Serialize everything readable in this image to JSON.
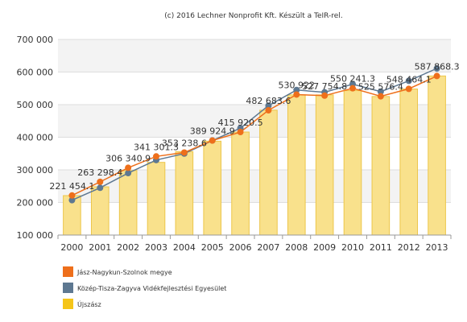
{
  "chart_data": {
    "type": "bar",
    "credit": "(c) 2016 Lechner Nonprofit Kft. Készült a TeIR-rel.",
    "title": "",
    "xlabel": "",
    "ylabel": "",
    "ylim": [
      100000,
      700000
    ],
    "yticks": [
      100000,
      200000,
      300000,
      400000,
      500000,
      600000,
      700000
    ],
    "ytick_labels": [
      "100 000",
      "200 000",
      "300 000",
      "400 000",
      "500 000",
      "600 000",
      "700 000"
    ],
    "grid": true,
    "legend_position": "bottom-left",
    "categories": [
      "2000",
      "2001",
      "2002",
      "2003",
      "2004",
      "2005",
      "2006",
      "2007",
      "2008",
      "2009",
      "2010",
      "2011",
      "2012",
      "2013"
    ],
    "series": [
      {
        "name": "Jász-Nagykun-Szolnok megye",
        "kind": "line",
        "color": "#ee6f1b",
        "values": [
          221454.1,
          263298.4,
          306340.9,
          341301.3,
          353238.6,
          389924.9,
          415920.5,
          482683.6,
          530922.0,
          527754.8,
          550241.3,
          525576.4,
          548464.1,
          587868.3
        ]
      },
      {
        "name": "Közép-Tisza-Zagyva Vidékfejlesztési Egyesület",
        "kind": "line",
        "color": "#5e7891",
        "values": [
          207000,
          245000,
          290000,
          330000,
          350000,
          390000,
          428000,
          497000,
          545000,
          538000,
          563000,
          540000,
          573000,
          611000
        ]
      },
      {
        "name": "Újszász",
        "kind": "bar",
        "color": "#f9e18c",
        "edge_color": "#ecc64a",
        "values": [
          221000,
          248000,
          298000,
          323000,
          356000,
          388000,
          416000,
          483000,
          530000,
          530000,
          543000,
          525000,
          548000,
          588000
        ]
      }
    ],
    "data_labels": [
      "221 454.1",
      "263 298.4",
      "306 340.9",
      "341 301.3",
      "353 238.6",
      "389 924.9",
      "415 920.5",
      "482 683.6",
      "530 922",
      "527 754.8",
      "550 241.3",
      "525 576.4",
      "548 464.1",
      "587 868.3"
    ]
  }
}
